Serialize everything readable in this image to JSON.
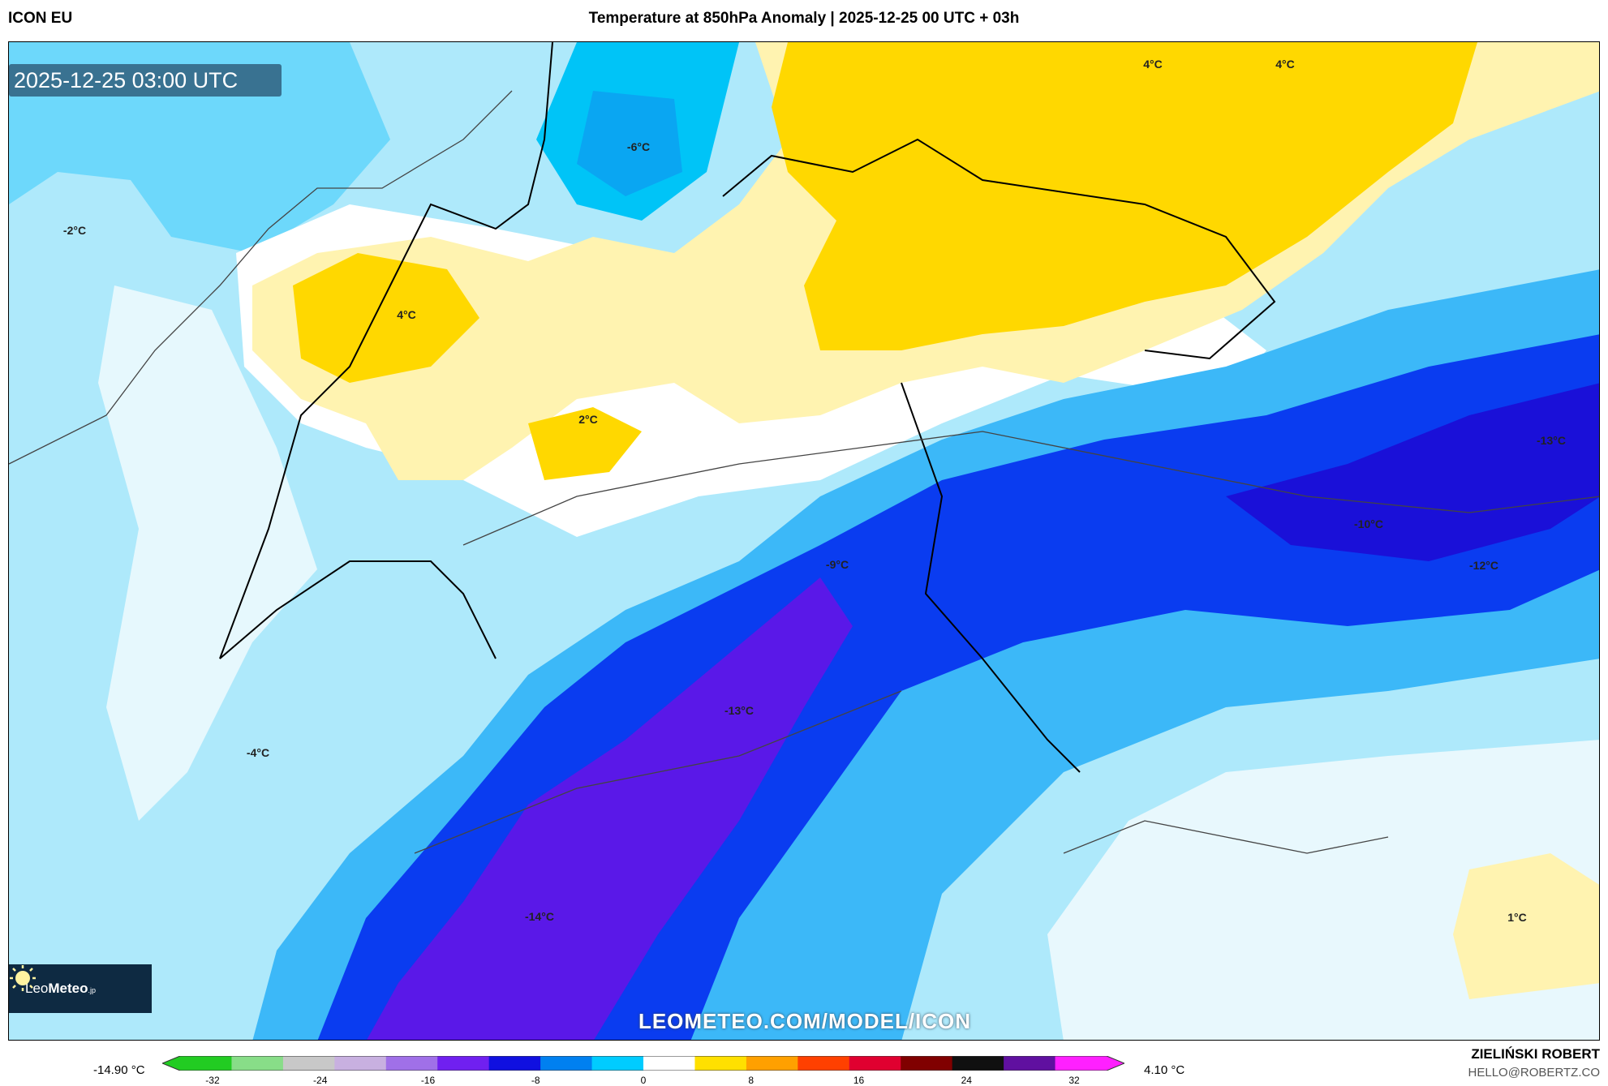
{
  "header": {
    "model": "ICON EU",
    "title": "Temperature at 850hPa Anomaly | 2025-12-25 00 UTC + 03h"
  },
  "map": {
    "timestamp": "2025-12-25 03:00 UTC",
    "watermark": "LEOMETEO.COM/MODEL/ICON",
    "logo": {
      "light": "Leo",
      "bold": "Meteo",
      "suffix": ".jp"
    },
    "labels": [
      "4°C",
      "4°C",
      "-6°C",
      "-2°C",
      "4°C",
      "2°C",
      "-13°C",
      "-10°C",
      "-12°C",
      "-9°C",
      "-13°C",
      "-4°C",
      "-14°C",
      "1°C"
    ]
  },
  "colorbar": {
    "min_label": "-14.90 °C",
    "max_label": "4.10 °C",
    "ticks": [
      "-32",
      "-24",
      "-16",
      "-8",
      "0",
      "8",
      "16",
      "24",
      "32"
    ],
    "range": [
      -32,
      32
    ],
    "colors": [
      "#22cc22",
      "#88dd88",
      "#c8c8c8",
      "#c8b0e0",
      "#a070e8",
      "#7020f0",
      "#1010e0",
      "#0080f0",
      "#00ccff",
      "#ffffff",
      "#ffe000",
      "#ffa000",
      "#ff4000",
      "#e00030",
      "#800000",
      "#101010",
      "#6010a0",
      "#ff20ff"
    ]
  },
  "footer": {
    "author": "ZIELIŃSKI ROBERT",
    "email": "HELLO@ROBERTZ.CO"
  }
}
